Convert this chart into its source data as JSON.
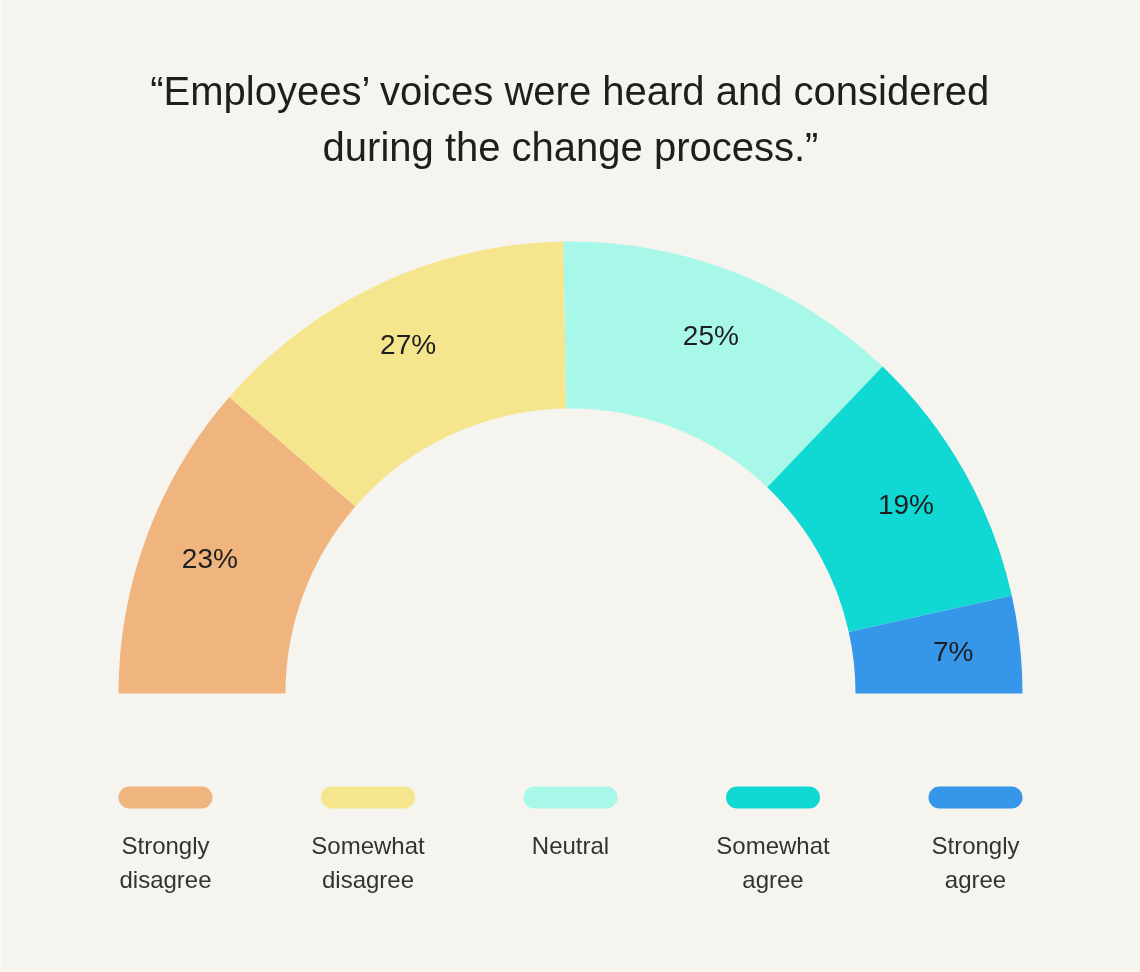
{
  "chart_data": {
    "type": "donut",
    "title": "“Employees’ voices were heard and considered\nduring the change process.”",
    "categories": [
      "Strongly disagree",
      "Somewhat disagree",
      "Neutral",
      "Somewhat agree",
      "Strongly agree"
    ],
    "values": [
      23,
      27,
      25,
      19,
      7
    ],
    "value_labels": [
      "23%",
      "27%",
      "25%",
      "19%",
      "7%"
    ],
    "colors": [
      "#f0b47e",
      "#f5e68e",
      "#a8f8ea",
      "#10d8d2",
      "#3596ea"
    ],
    "legend": "bottom"
  }
}
